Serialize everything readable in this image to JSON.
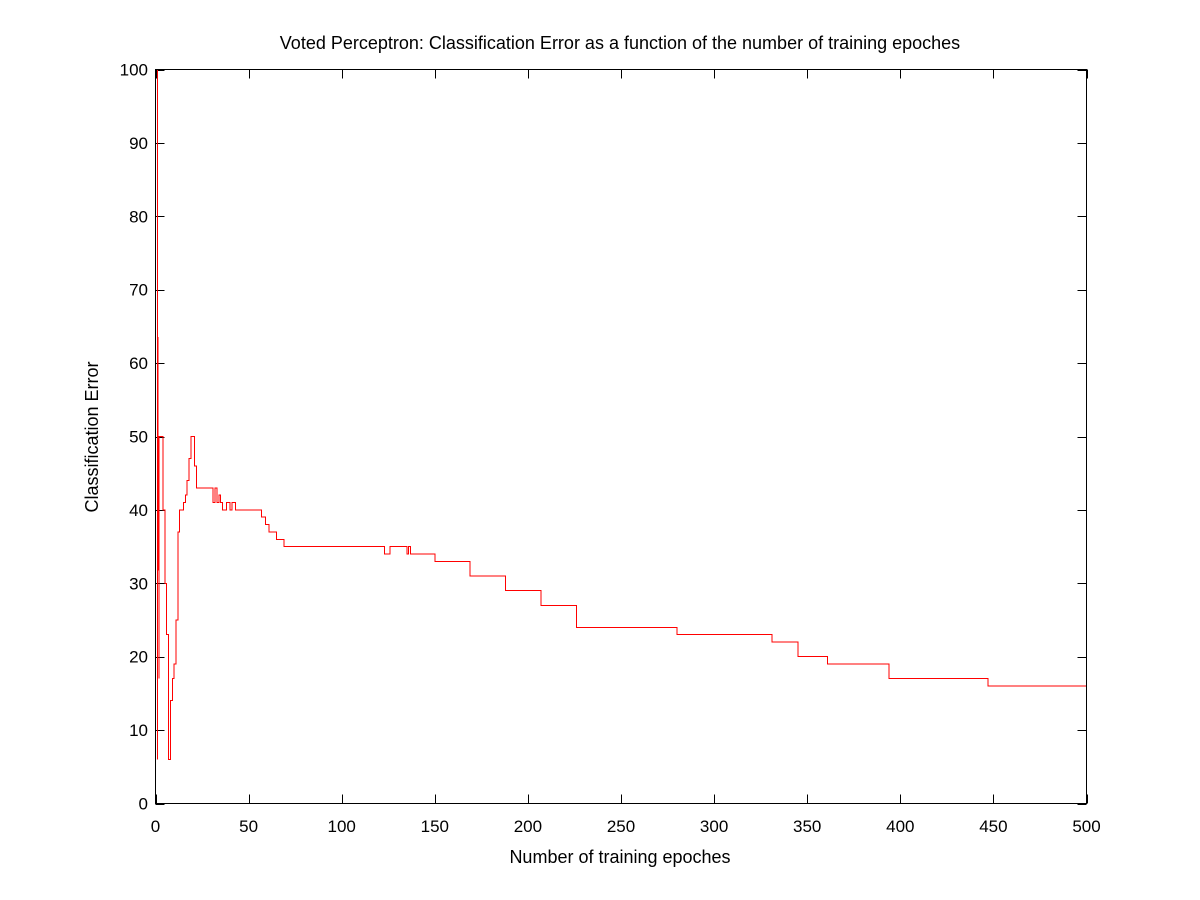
{
  "chart_data": {
    "type": "line",
    "title": "Voted Perceptron: Classification Error as a function of the number of training epoches",
    "xlabel": "Number of training epoches",
    "ylabel": "Classification Error",
    "xlim": [
      0,
      500
    ],
    "ylim": [
      0,
      100
    ],
    "xticks": [
      0,
      50,
      100,
      150,
      200,
      250,
      300,
      350,
      400,
      450,
      500
    ],
    "yticks": [
      0,
      10,
      20,
      30,
      40,
      50,
      60,
      70,
      80,
      90,
      100
    ],
    "grid": false,
    "line_color": "#ff0000",
    "series": [
      {
        "x": [
          1,
          1,
          1,
          1,
          2,
          2,
          3,
          3,
          4,
          4,
          5,
          5,
          6,
          6,
          7,
          7,
          8,
          8,
          9,
          9,
          10,
          10,
          11,
          11,
          12,
          12,
          13,
          13,
          14,
          14,
          15,
          15,
          16,
          16,
          17,
          17,
          18,
          18,
          19,
          19,
          20,
          20,
          21,
          21,
          22,
          22,
          31,
          31,
          32,
          32,
          33,
          33,
          34,
          34,
          35,
          35,
          36,
          36,
          38,
          38,
          40,
          40,
          41,
          41,
          43,
          43,
          45,
          45,
          57,
          57,
          59,
          59,
          61,
          61,
          65,
          65,
          69,
          69,
          73,
          73,
          75,
          75,
          123,
          123,
          126,
          126,
          128,
          128,
          135,
          135,
          136,
          136,
          137,
          137,
          138,
          138,
          150,
          150,
          169,
          169,
          188,
          188,
          207,
          207,
          226,
          226,
          280,
          280,
          331,
          331,
          345,
          345,
          361,
          361,
          394,
          394,
          447,
          447,
          500
        ],
        "y": [
          100,
          6,
          76,
          76,
          17,
          50,
          50,
          50,
          50,
          40,
          40,
          30,
          30,
          23,
          23,
          6,
          6,
          14,
          14,
          17,
          17,
          19,
          19,
          25,
          25,
          37,
          37,
          40,
          40,
          40,
          40,
          41,
          41,
          42,
          42,
          44,
          44,
          47,
          47,
          50,
          50,
          50,
          50,
          46,
          46,
          43,
          43,
          41,
          41,
          43,
          43,
          41,
          41,
          42,
          42,
          41,
          41,
          40,
          40,
          41,
          41,
          40,
          40,
          41,
          41,
          40,
          40,
          40,
          40,
          39,
          39,
          38,
          38,
          37,
          37,
          36,
          36,
          35,
          35,
          35,
          35,
          35,
          35,
          34,
          34,
          35,
          35,
          35,
          35,
          34,
          34,
          35,
          35,
          34,
          34,
          34,
          34,
          33,
          33,
          31,
          31,
          29,
          29,
          27,
          27,
          24,
          24,
          23,
          23,
          22,
          22,
          20,
          20,
          19,
          19,
          17,
          17,
          16,
          16
        ]
      }
    ]
  }
}
